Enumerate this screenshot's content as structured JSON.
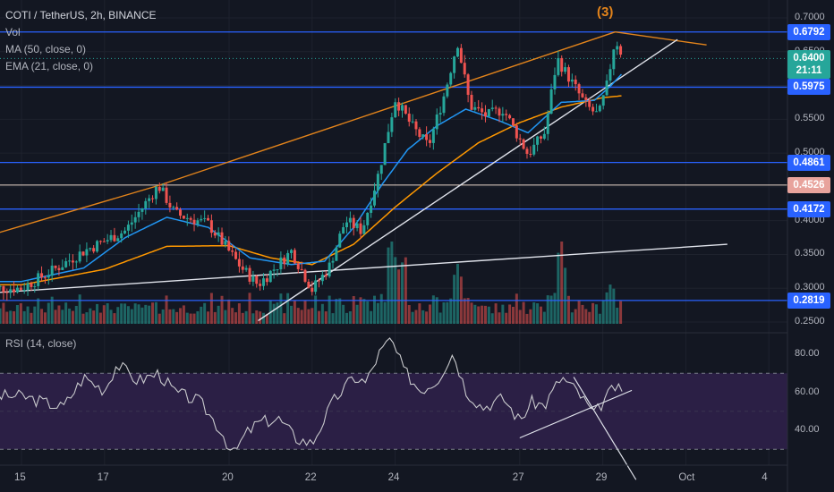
{
  "symbol": {
    "title": "COTI / TetherUS, 2h, BINANCE",
    "vol_label": "Vol",
    "ma_label": "MA (50, close, 0)",
    "ema_label": "EMA (21, close, 0)",
    "rsi_label": "RSI (14, close)"
  },
  "wave_label": "(3)",
  "price_axis": {
    "ticks": [
      "0.7000",
      "0.6500",
      "0.6000",
      "0.5500",
      "0.5000",
      "0.4500",
      "0.4000",
      "0.3500",
      "0.3000",
      "0.2500"
    ],
    "tick_values": [
      0.7,
      0.65,
      0.6,
      0.55,
      0.5,
      0.45,
      0.4,
      0.35,
      0.3,
      0.25
    ]
  },
  "rsi_axis": {
    "ticks": [
      "80.00",
      "60.00",
      "40.00"
    ],
    "tick_values": [
      80,
      60,
      40
    ]
  },
  "x_axis": {
    "labels": [
      "15",
      "17",
      "20",
      "22",
      "24",
      "27",
      "29",
      "Oct",
      "4"
    ]
  },
  "price_labels": [
    {
      "text": "0.6792",
      "value": 0.6792,
      "color": "#2962ff"
    },
    {
      "text": "0.6400",
      "value": 0.64,
      "color": "#26a69a"
    },
    {
      "text": "21:11",
      "value": 0.6225,
      "color": "#26a69a"
    },
    {
      "text": "0.5975",
      "value": 0.5975,
      "color": "#2962ff"
    },
    {
      "text": "0.4861",
      "value": 0.4861,
      "color": "#2962ff"
    },
    {
      "text": "0.4526",
      "value": 0.4526,
      "color": "#e8a39c"
    },
    {
      "text": "0.4172",
      "value": 0.4172,
      "color": "#2962ff"
    },
    {
      "text": "0.2819",
      "value": 0.2819,
      "color": "#2962ff"
    }
  ],
  "colors": {
    "up": "#26a69a",
    "down": "#ef5350",
    "ma": "#ff9800",
    "ema": "#2196f3",
    "hline": "#2962ff",
    "trend_orange": "#e3841b",
    "trend_white": "#e0e3eb",
    "rsi_line": "#c8c9cc",
    "rsi_band": "#2b1f45"
  },
  "chart_data": {
    "type": "candlestick",
    "price_range": [
      0.25,
      0.7
    ],
    "rsi_range": [
      20,
      90
    ],
    "rsi_band": [
      30,
      70
    ],
    "horizontal_levels": [
      0.6792,
      0.5975,
      0.4861,
      0.4526,
      0.4172,
      0.2819
    ],
    "current_price": 0.64,
    "price_path": [
      [
        15,
        0.3
      ],
      [
        15.8,
        0.328
      ],
      [
        16.5,
        0.355
      ],
      [
        17.5,
        0.385
      ],
      [
        18.3,
        0.452
      ],
      [
        18.7,
        0.41
      ],
      [
        19.5,
        0.395
      ],
      [
        20.3,
        0.33
      ],
      [
        20.7,
        0.305
      ],
      [
        21.5,
        0.355
      ],
      [
        22.0,
        0.298
      ],
      [
        22.4,
        0.33
      ],
      [
        22.8,
        0.4
      ],
      [
        23.2,
        0.385
      ],
      [
        23.6,
        0.47
      ],
      [
        24.0,
        0.58
      ],
      [
        24.4,
        0.54
      ],
      [
        24.8,
        0.51
      ],
      [
        25.2,
        0.59
      ],
      [
        25.5,
        0.665
      ],
      [
        25.8,
        0.57
      ],
      [
        26.2,
        0.555
      ],
      [
        26.6,
        0.565
      ],
      [
        27.2,
        0.498
      ],
      [
        27.6,
        0.53
      ],
      [
        27.9,
        0.64
      ],
      [
        28.3,
        0.6
      ],
      [
        28.6,
        0.57
      ],
      [
        28.9,
        0.555
      ],
      [
        29.1,
        0.6
      ],
      [
        29.3,
        0.67
      ],
      [
        29.5,
        0.64
      ]
    ],
    "rsi_path": [
      [
        15,
        58
      ],
      [
        15.5,
        55
      ],
      [
        16,
        52
      ],
      [
        16.5,
        68
      ],
      [
        17,
        61
      ],
      [
        17.3,
        75
      ],
      [
        17.8,
        66
      ],
      [
        18.3,
        70
      ],
      [
        18.7,
        60
      ],
      [
        19.3,
        55
      ],
      [
        19.8,
        40
      ],
      [
        20.1,
        27
      ],
      [
        20.4,
        38
      ],
      [
        20.7,
        44
      ],
      [
        21.2,
        46
      ],
      [
        21.6,
        36
      ],
      [
        22,
        33
      ],
      [
        22.5,
        55
      ],
      [
        23,
        68
      ],
      [
        23.3,
        65
      ],
      [
        23.6,
        80
      ],
      [
        23.9,
        88
      ],
      [
        24.2,
        72
      ],
      [
        24.6,
        61
      ],
      [
        25,
        66
      ],
      [
        25.4,
        81
      ],
      [
        25.7,
        61
      ],
      [
        26.1,
        52
      ],
      [
        26.6,
        57
      ],
      [
        27.0,
        45
      ],
      [
        27.3,
        55
      ],
      [
        27.6,
        53
      ],
      [
        28.0,
        68
      ],
      [
        28.4,
        60
      ],
      [
        28.8,
        48
      ],
      [
        29.0,
        55
      ],
      [
        29.3,
        63
      ],
      [
        29.5,
        58
      ]
    ],
    "ma50_path": [
      [
        15,
        0.305
      ],
      [
        17,
        0.328
      ],
      [
        18.5,
        0.362
      ],
      [
        20,
        0.363
      ],
      [
        21,
        0.345
      ],
      [
        22,
        0.335
      ],
      [
        23,
        0.365
      ],
      [
        24,
        0.42
      ],
      [
        25,
        0.47
      ],
      [
        26,
        0.515
      ],
      [
        27,
        0.545
      ],
      [
        28,
        0.568
      ],
      [
        29,
        0.582
      ],
      [
        29.5,
        0.585
      ]
    ],
    "ema21_path": [
      [
        15,
        0.31
      ],
      [
        16.5,
        0.33
      ],
      [
        17.5,
        0.375
      ],
      [
        18.5,
        0.405
      ],
      [
        19.5,
        0.39
      ],
      [
        20.5,
        0.345
      ],
      [
        21.5,
        0.335
      ],
      [
        22.3,
        0.34
      ],
      [
        23,
        0.39
      ],
      [
        23.7,
        0.455
      ],
      [
        24.3,
        0.505
      ],
      [
        25,
        0.54
      ],
      [
        25.7,
        0.565
      ],
      [
        26.5,
        0.548
      ],
      [
        27.2,
        0.53
      ],
      [
        28,
        0.575
      ],
      [
        28.8,
        0.578
      ],
      [
        29.2,
        0.6
      ],
      [
        29.5,
        0.62
      ]
    ],
    "volume_max": 1.0,
    "volume_peaks": [
      [
        23.9,
        1.0
      ],
      [
        24.2,
        0.82
      ],
      [
        25.5,
        0.62
      ],
      [
        28.0,
        0.95
      ],
      [
        29.2,
        0.38
      ]
    ],
    "trend_lines": [
      {
        "color": "orange",
        "from": [
          14.0,
          0.374
        ],
        "to": [
          18.3,
          0.452
        ]
      },
      {
        "color": "orange",
        "from": [
          18.3,
          0.452
        ],
        "to": [
          29.3,
          0.6792
        ]
      },
      {
        "color": "orange",
        "from": [
          29.3,
          0.6792
        ],
        "to": [
          31.5,
          0.66
        ]
      },
      {
        "color": "white",
        "from": [
          20.7,
          0.252
        ],
        "to": [
          30.8,
          0.668
        ]
      },
      {
        "color": "white",
        "from": [
          14.0,
          0.292
        ],
        "to": [
          32.0,
          0.365
        ]
      }
    ],
    "rsi_trend_lines": [
      {
        "from": [
          27.0,
          36
        ],
        "to": [
          29.7,
          61
        ]
      },
      {
        "from": [
          28.3,
          68
        ],
        "to": [
          29.8,
          14
        ]
      }
    ]
  }
}
